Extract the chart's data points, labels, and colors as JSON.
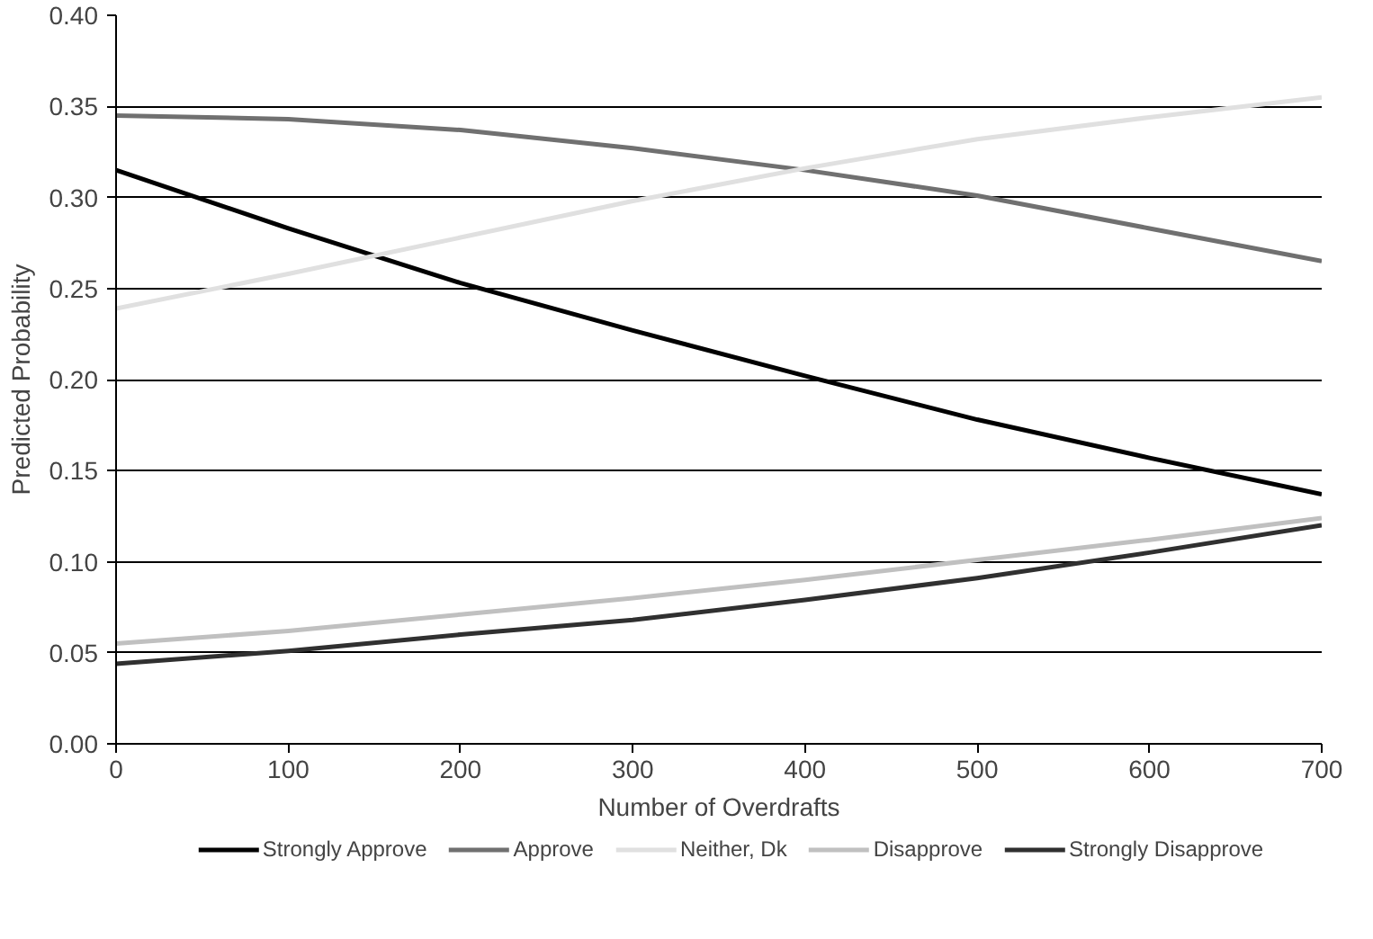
{
  "chart_data": {
    "type": "line",
    "xlabel": "Number of Overdrafts",
    "ylabel": "Predicted Probability",
    "x": [
      0,
      100,
      200,
      300,
      400,
      500,
      600,
      700
    ],
    "series": [
      {
        "name": "Strongly Approve",
        "color": "#000000",
        "values": [
          0.315,
          0.283,
          0.253,
          0.227,
          0.202,
          0.178,
          0.157,
          0.137
        ]
      },
      {
        "name": "Approve",
        "color": "#707070",
        "values": [
          0.345,
          0.343,
          0.337,
          0.327,
          0.315,
          0.301,
          0.283,
          0.265
        ]
      },
      {
        "name": "Neither, Dk",
        "color": "#e0e0e0",
        "values": [
          0.239,
          0.258,
          0.278,
          0.298,
          0.316,
          0.332,
          0.344,
          0.355
        ]
      },
      {
        "name": "Disapprove",
        "color": "#c0c0c0",
        "values": [
          0.055,
          0.062,
          0.071,
          0.08,
          0.09,
          0.101,
          0.112,
          0.124
        ]
      },
      {
        "name": "Strongly Disapprove",
        "color": "#303030",
        "values": [
          0.044,
          0.051,
          0.06,
          0.068,
          0.079,
          0.091,
          0.105,
          0.12
        ]
      }
    ],
    "xlim": [
      0,
      700
    ],
    "xticks": [
      0,
      100,
      200,
      300,
      400,
      500,
      600,
      700
    ],
    "ylim": [
      0,
      0.4
    ],
    "yticks": [
      {
        "value": 0,
        "label": "0.00"
      },
      {
        "value": 0.05,
        "label": "0.05"
      },
      {
        "value": 0.1,
        "label": "0.10"
      },
      {
        "value": 0.15,
        "label": "0.15"
      },
      {
        "value": 0.2,
        "label": "0.20"
      },
      {
        "value": 0.25,
        "label": "0.25"
      },
      {
        "value": 0.3,
        "label": "0.30"
      },
      {
        "value": 0.35,
        "label": "0.35"
      },
      {
        "value": 0.4,
        "label": "0.40"
      }
    ],
    "grid": "y",
    "legend": "bottom",
    "line_style": "solid"
  }
}
